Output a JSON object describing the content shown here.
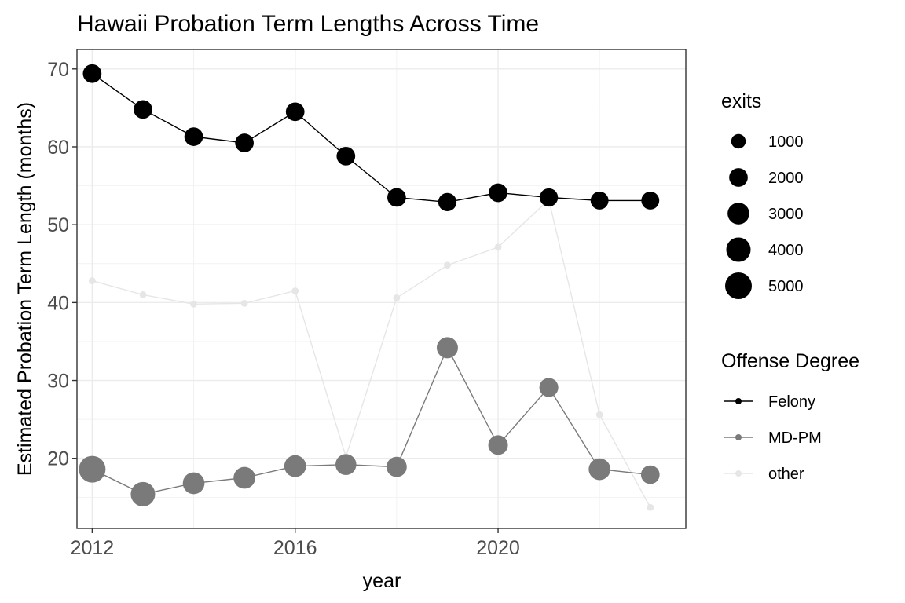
{
  "chart_data": {
    "type": "line",
    "title": "Hawaii Probation Term Lengths Across Time",
    "xlabel": "year",
    "ylabel": "Estimated Probation Term Length (months)",
    "xlim": [
      2011.7,
      2023.7
    ],
    "ylim": [
      11,
      72.5
    ],
    "x_ticks": [
      2012,
      2016,
      2020
    ],
    "y_ticks": [
      20,
      30,
      40,
      50,
      60,
      70
    ],
    "grid": true,
    "legend_position": "right",
    "x": [
      2012,
      2013,
      2014,
      2015,
      2016,
      2017,
      2018,
      2019,
      2020,
      2021,
      2022,
      2023
    ],
    "series": [
      {
        "name": "Felony",
        "color": "#000000",
        "values": [
          69.4,
          64.8,
          61.3,
          60.5,
          64.5,
          58.8,
          53.5,
          52.9,
          54.1,
          53.5,
          53.1,
          53.1
        ],
        "exits": [
          2000,
          2000,
          2000,
          2000,
          2000,
          2000,
          2000,
          1900,
          2000,
          1900,
          1800,
          1800
        ]
      },
      {
        "name": "MD-PM",
        "color": "#7a7a7a",
        "values": [
          18.6,
          15.4,
          16.8,
          17.5,
          19.0,
          19.2,
          18.9,
          34.2,
          21.7,
          29.1,
          18.6,
          17.9
        ],
        "exits": [
          5000,
          4000,
          3000,
          3000,
          3000,
          2700,
          2500,
          2800,
          2300,
          2100,
          3000,
          2000
        ]
      },
      {
        "name": "other",
        "color": "#e6e6e6",
        "values": [
          42.8,
          41.0,
          39.8,
          39.9,
          41.5,
          20.2,
          40.6,
          44.8,
          47.1,
          53.2,
          25.6,
          13.7
        ],
        "exits": [
          50,
          50,
          50,
          50,
          50,
          50,
          50,
          50,
          50,
          50,
          50,
          50
        ]
      }
    ],
    "size_legend": {
      "title": "exits",
      "breaks": [
        1000,
        2000,
        3000,
        4000,
        5000
      ],
      "labels": [
        "1000",
        "2000",
        "3000",
        "4000",
        "5000"
      ]
    },
    "color_legend": {
      "title": "Offense Degree",
      "labels": [
        "Felony",
        "MD-PM",
        "other"
      ]
    }
  }
}
